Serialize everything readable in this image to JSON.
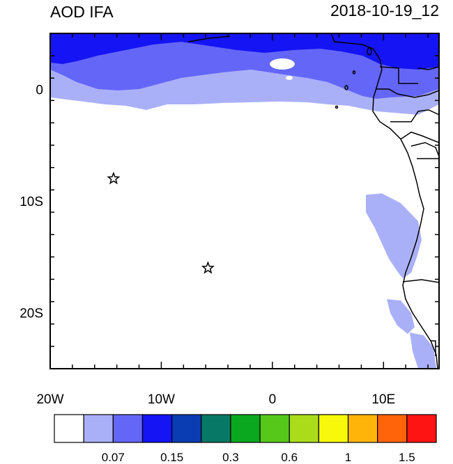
{
  "header": {
    "title": "AOD IFA",
    "datetime": "2018-10-19_12"
  },
  "axes": {
    "x_ticks": [
      {
        "lon": -20,
        "label": "20W"
      },
      {
        "lon": -10,
        "label": "10W"
      },
      {
        "lon": 0,
        "label": "0"
      },
      {
        "lon": 10,
        "label": "10E"
      }
    ],
    "y_ticks": [
      {
        "lat": 0,
        "label": "0"
      },
      {
        "lat": -10,
        "label": "10S"
      },
      {
        "lat": -20,
        "label": "20S"
      }
    ],
    "lon_range": [
      -20,
      15
    ],
    "lat_range": [
      -25,
      5
    ]
  },
  "markers": [
    {
      "name": "star-marker-1",
      "lon": -14.3,
      "lat": -8.0
    },
    {
      "name": "star-marker-2",
      "lon": -5.8,
      "lat": -16.0
    }
  ],
  "colorbar": {
    "colors": [
      "#ffffff",
      "#aab0f8",
      "#6466f8",
      "#1414f4",
      "#0a3cb4",
      "#087866",
      "#0aa81e",
      "#55c81a",
      "#aadc1a",
      "#f8f80a",
      "#ffb40a",
      "#ff640a",
      "#ff1414"
    ],
    "labels": [
      {
        "boundary": 2,
        "text": "0.07"
      },
      {
        "boundary": 4,
        "text": "0.15"
      },
      {
        "boundary": 6,
        "text": "0.3"
      },
      {
        "boundary": 8,
        "text": "0.6"
      },
      {
        "boundary": 10,
        "text": "1"
      },
      {
        "boundary": 12,
        "text": "1.5"
      }
    ]
  }
}
